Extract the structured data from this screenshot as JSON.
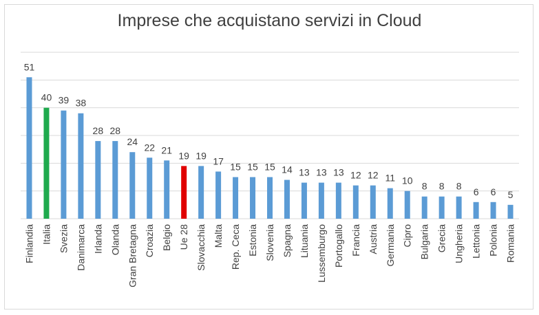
{
  "chart_data": {
    "type": "bar",
    "title": "Imprese che acquistano servizi in Cloud",
    "categories": [
      "Finlandia",
      "Italia",
      "Svezia",
      "Danimarca",
      "Irlanda",
      "Olanda",
      "Gran Bretagna",
      "Croazia",
      "Belgio",
      "Ue 28",
      "Slovacchia",
      "Malta",
      "Rep. Ceca",
      "Estonia",
      "Slovenia",
      "Spagna",
      "Lituania",
      "Lussemburgo",
      "Portogallo",
      "Francia",
      "Austria",
      "Germania",
      "Cipro",
      "Bulgaria",
      "Grecia",
      "Ungheria",
      "Lettonia",
      "Polonia",
      "Romania"
    ],
    "values": [
      51,
      40,
      39,
      38,
      28,
      28,
      24,
      22,
      21,
      19,
      19,
      17,
      15,
      15,
      15,
      14,
      13,
      13,
      13,
      12,
      12,
      11,
      10,
      8,
      8,
      8,
      6,
      6,
      5
    ],
    "ylim": [
      0,
      60
    ],
    "grid": true,
    "legend": "none",
    "colors": {
      "default": "#5b9bd5",
      "Italia": "#1faa4e",
      "Ue 28": "#e00000"
    }
  }
}
